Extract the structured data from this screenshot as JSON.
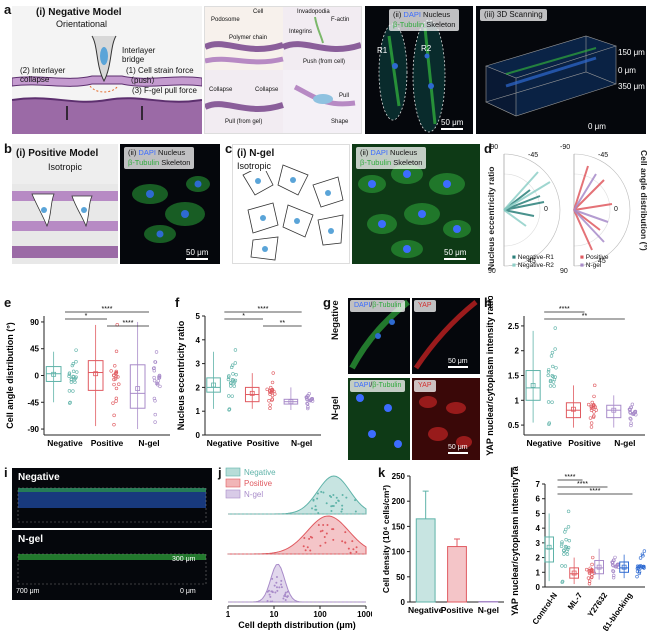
{
  "labels": {
    "a": "a",
    "b": "b",
    "c": "c",
    "d": "d",
    "e": "e",
    "f": "f",
    "g": "g",
    "h": "h",
    "i": "i",
    "j": "j",
    "k": "k",
    "l": "l"
  },
  "a": {
    "model_title": "(i) Negative Model",
    "model_sub": "Orientational",
    "bridge": "Interlayer bridge",
    "collapse": "(2) Interlayer collapse",
    "push": "(1) Cell strain force（push）",
    "pull": "(3) F-gel pull force",
    "detail": {
      "cell": "Cell",
      "podosome": "Podosome",
      "polymer": "Polymer chain",
      "invadopodia": "Invadopodia",
      "factin": "F-actin",
      "integrins": "Integrins",
      "push_cell": "Push (from cell)",
      "collapse_l": "Collapse",
      "collapse_r": "Collapse",
      "pull_gel": "Pull (from gel)",
      "pull": "Pull",
      "shape": "Shape"
    },
    "ii_title_prefix": "(ii)",
    "ii_dapi": "DAPI",
    "ii_nucleus": "Nucleus",
    "ii_tubulin": "β-Tubulin",
    "ii_skeleton": "Skeleton",
    "r1": "R1",
    "r2": "R2",
    "ii_scale": "50 μm",
    "iii_title": "(iii) 3D Scanning",
    "iii_150": "150 μm",
    "iii_0a": "0 μm",
    "iii_350": "350 μm",
    "iii_0b": "0 μm"
  },
  "b": {
    "title": "(i) Positive Model",
    "sub": "Isotropic",
    "ii_prefix": "(ii)",
    "dapi": "DAPI",
    "nucleus": "Nucleus",
    "tubulin": "β-Tubulin",
    "skeleton": "Skeleton",
    "scale": "50 μm"
  },
  "c": {
    "title": "(i) N-gel",
    "sub": "Isotropic",
    "ii_prefix": "(ii)",
    "dapi": "DAPI",
    "nucleus": "Nucleus",
    "tubulin": "β-Tubulin",
    "skeleton": "Skeleton",
    "scale": "50 μm"
  },
  "d": {
    "ylabel_left": "Nucleus eccentricity ratio",
    "ylabel_right": "Cell angle distribution (°)",
    "ticks": [
      "-90",
      "-45",
      "0",
      "45",
      "90"
    ],
    "legend_left": [
      "Negative-R1",
      "Negative-R2"
    ],
    "legend_right": [
      "Positive",
      "N-gel"
    ]
  },
  "g": {
    "row1": "Negative",
    "row2": "N-gel",
    "dapi": "DAPI",
    "tubulin": "β-Tubulin",
    "yap": "YAP",
    "scale": "50 μm"
  },
  "i": {
    "top": "Negative",
    "bottom": "N-gel",
    "z": "300 μm",
    "x": "700 μm",
    "zero": "0 μm"
  },
  "colors": {
    "negative": "#5fb3a9",
    "positive": "#e05a60",
    "ngel": "#a88bc9",
    "blue": "#2e6ad1"
  },
  "chart_data": [
    {
      "panel": "e",
      "type": "box",
      "ylabel": "Cell angle distribution (°)",
      "categories": [
        "Negative",
        "Positive",
        "N-gel"
      ],
      "yticks": [
        -90,
        -45,
        0,
        45,
        90
      ],
      "ylim": [
        -100,
        100
      ],
      "boxes": [
        {
          "q1": -10,
          "median": 3,
          "q3": 15,
          "whislo": -45,
          "whishi": 40,
          "mean": 2
        },
        {
          "q1": -25,
          "median": 5,
          "q3": 25,
          "whislo": -85,
          "whishi": 85,
          "mean": 3
        },
        {
          "q1": -55,
          "median": -30,
          "q3": 18,
          "whislo": -90,
          "whishi": 90,
          "mean": -22
        }
      ],
      "significance": [
        {
          "pair": [
            0,
            2
          ],
          "label": "****"
        },
        {
          "pair": [
            0,
            1
          ],
          "label": "*"
        },
        {
          "pair": [
            1,
            2
          ],
          "label": "****"
        }
      ]
    },
    {
      "panel": "f",
      "type": "box",
      "ylabel": "Nucleus eccentricity ratio",
      "categories": [
        "Negative",
        "Positive",
        "N-gel"
      ],
      "yticks": [
        0,
        1,
        2,
        3,
        4,
        5
      ],
      "ylim": [
        0,
        5
      ],
      "boxes": [
        {
          "q1": 1.8,
          "median": 2.0,
          "q3": 2.4,
          "whislo": 1.1,
          "whishi": 3.5,
          "mean": 2.1
        },
        {
          "q1": 1.4,
          "median": 1.7,
          "q3": 2.0,
          "whislo": 1.1,
          "whishi": 2.6,
          "mean": 1.75
        },
        {
          "q1": 1.3,
          "median": 1.4,
          "q3": 1.5,
          "whislo": 1.05,
          "whishi": 2.0,
          "mean": 1.4
        }
      ],
      "significance": [
        {
          "pair": [
            0,
            2
          ],
          "label": "****"
        },
        {
          "pair": [
            0,
            1
          ],
          "label": "*"
        },
        {
          "pair": [
            1,
            2
          ],
          "label": "**"
        }
      ]
    },
    {
      "panel": "h",
      "type": "box",
      "ylabel": "YAP nuclear/cytoplasm intensity ratio",
      "categories": [
        "Negative",
        "Positive",
        "N-gel"
      ],
      "yticks": [
        0.5,
        1.0,
        1.5,
        2.0,
        2.5
      ],
      "ylim": [
        0.3,
        2.7
      ],
      "boxes": [
        {
          "q1": 1.0,
          "median": 1.25,
          "q3": 1.6,
          "whislo": 0.55,
          "whishi": 2.4,
          "mean": 1.3
        },
        {
          "q1": 0.65,
          "median": 0.8,
          "q3": 0.95,
          "whislo": 0.45,
          "whishi": 1.3,
          "mean": 0.82
        },
        {
          "q1": 0.65,
          "median": 0.8,
          "q3": 0.9,
          "whislo": 0.45,
          "whishi": 1.1,
          "mean": 0.8
        }
      ],
      "significance": [
        {
          "pair": [
            0,
            1
          ],
          "label": "****"
        },
        {
          "pair": [
            0,
            2
          ],
          "label": "**"
        }
      ]
    },
    {
      "panel": "j",
      "type": "area",
      "xlabel": "Cell depth distribution (μm)",
      "xscale": "log",
      "xticks": [
        "1",
        "10",
        "100",
        "1000"
      ],
      "xlim": [
        1,
        1000
      ],
      "series": [
        {
          "name": "Negative",
          "peak": 200,
          "width": 0.35
        },
        {
          "name": "Positive",
          "peak": 150,
          "width": 0.45
        },
        {
          "name": "N-gel",
          "peak": 12,
          "width": 0.15
        }
      ]
    },
    {
      "panel": "k",
      "type": "bar",
      "ylabel": "Cell density (10⁴ cells/cm²)",
      "categories": [
        "Negative",
        "Positive",
        "N-gel"
      ],
      "values": [
        165,
        110,
        1
      ],
      "errors": [
        55,
        15,
        0
      ],
      "yticks": [
        0,
        50,
        100,
        150,
        200,
        250
      ],
      "ylim": [
        0,
        250
      ]
    },
    {
      "panel": "l",
      "type": "box",
      "ylabel": "YAP nuclear/cytoplasm intensity ratio",
      "categories": [
        "Control-N",
        "ML-7",
        "Y27632",
        "β1-blocking"
      ],
      "yticks": [
        0,
        1,
        2,
        3,
        4,
        5,
        6,
        7
      ],
      "ylim": [
        0,
        7
      ],
      "boxes": [
        {
          "q1": 1.7,
          "median": 2.6,
          "q3": 3.4,
          "whislo": 0.4,
          "whishi": 5.0,
          "mean": 2.7
        },
        {
          "q1": 0.6,
          "median": 0.9,
          "q3": 1.3,
          "whislo": 0.2,
          "whishi": 2.0,
          "mean": 0.95
        },
        {
          "q1": 0.9,
          "median": 1.3,
          "q3": 1.8,
          "whislo": 0.5,
          "whishi": 2.6,
          "mean": 1.35
        },
        {
          "q1": 1.0,
          "median": 1.3,
          "q3": 1.7,
          "whislo": 0.6,
          "whishi": 2.2,
          "mean": 1.35
        }
      ],
      "significance": [
        {
          "pair": [
            0,
            1
          ],
          "label": "****"
        },
        {
          "pair": [
            0,
            2
          ],
          "label": "****"
        },
        {
          "pair": [
            0,
            3
          ],
          "label": "****"
        }
      ]
    }
  ]
}
